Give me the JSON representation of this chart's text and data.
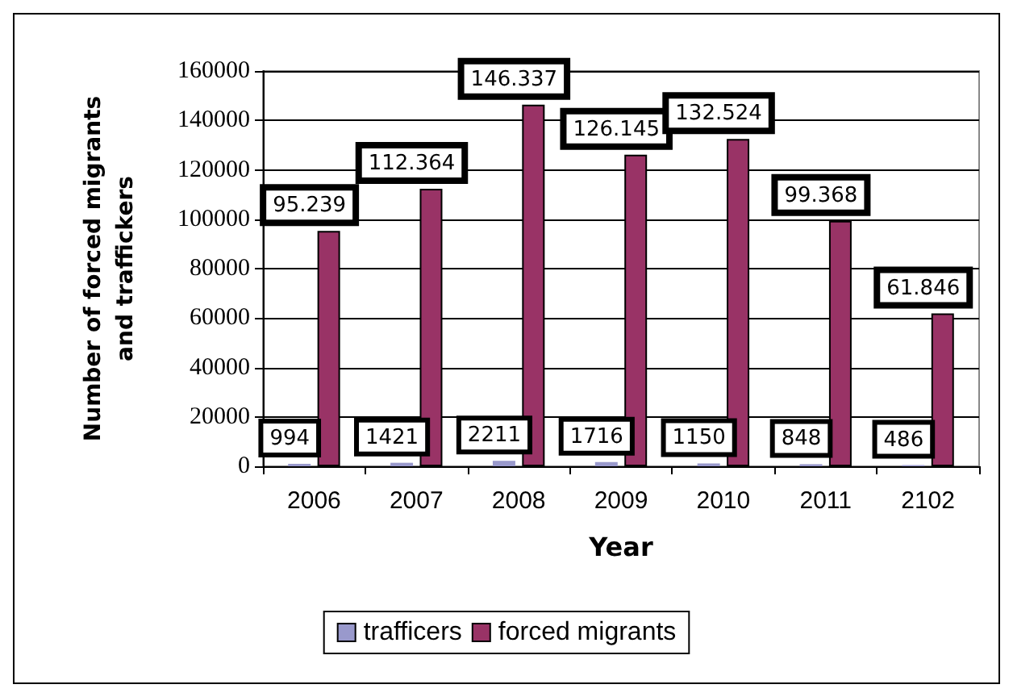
{
  "chart_data": {
    "type": "bar",
    "xlabel": "Year",
    "ylabel": "Number of forced migrants\nand traffickers",
    "categories": [
      "2006",
      "2007",
      "2008",
      "2009",
      "2010",
      "2011",
      "2102"
    ],
    "series": [
      {
        "name": "trafficers",
        "color": "#9999cc",
        "values": [
          994,
          1421,
          2211,
          1716,
          1150,
          848,
          486
        ],
        "value_labels": [
          "994",
          "1421",
          "2211",
          "1716",
          "1150",
          "848",
          "486"
        ]
      },
      {
        "name": "forced migrants",
        "color": "#993366",
        "values": [
          95239,
          112364,
          146337,
          126145,
          132524,
          99368,
          61846
        ],
        "value_labels": [
          "95.239",
          "112.364",
          "146.337",
          "126.145",
          "132.524",
          "99.368",
          "61.846"
        ]
      }
    ],
    "ylim": [
      0,
      160000
    ],
    "yticks": [
      0,
      20000,
      40000,
      60000,
      80000,
      100000,
      120000,
      140000,
      160000
    ],
    "grid": "y",
    "legend": "bottom"
  }
}
